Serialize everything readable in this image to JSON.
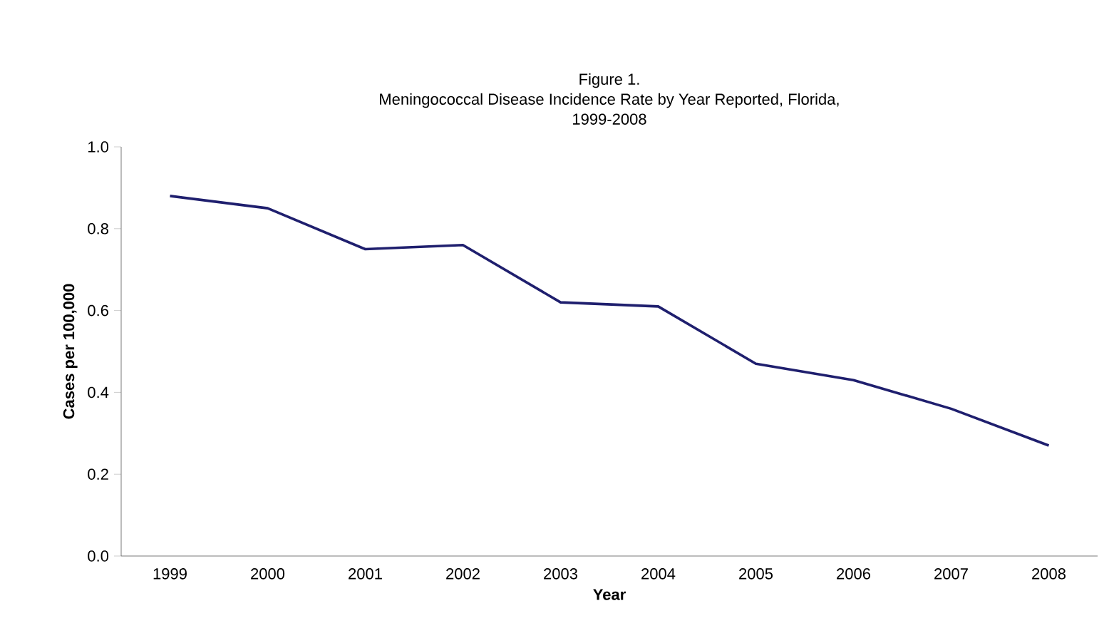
{
  "chart_data": {
    "type": "line",
    "title": "Figure 1.\nMeningococcal Disease Incidence Rate by Year Reported, Florida,\n1999-2008",
    "xlabel": "Year",
    "ylabel": "Cases per 100,000",
    "categories": [
      "1999",
      "2000",
      "2001",
      "2002",
      "2003",
      "2004",
      "2005",
      "2006",
      "2007",
      "2008"
    ],
    "series": [
      {
        "color": "#1f1f6e",
        "values": [
          0.88,
          0.85,
          0.75,
          0.76,
          0.62,
          0.61,
          0.47,
          0.43,
          0.36,
          0.27
        ]
      }
    ],
    "ylim": [
      0,
      1
    ],
    "yticks": [
      {
        "value": 0,
        "label": "0.0"
      },
      {
        "value": 0.2,
        "label": "0.2"
      },
      {
        "value": 0.4,
        "label": "0.4"
      },
      {
        "value": 0.6,
        "label": "0.6"
      },
      {
        "value": 0.8,
        "label": "0.8"
      },
      {
        "value": 1,
        "label": "1.0"
      }
    ],
    "grid": false,
    "marker": "none",
    "line_style": "solid"
  }
}
